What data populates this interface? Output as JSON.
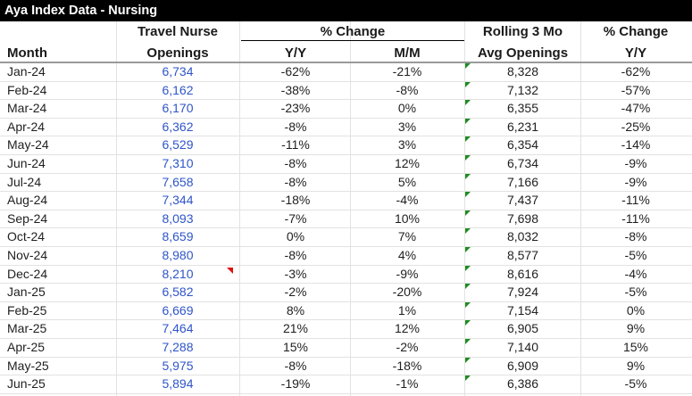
{
  "title": "Aya Index Data - Nursing",
  "headers": {
    "month": "Month",
    "travel_nurse_line1": "Travel Nurse",
    "travel_nurse_line2": "Openings",
    "pct_change": "% Change",
    "yy": "Y/Y",
    "mm": "M/M",
    "rolling_line1": "Rolling 3 Mo",
    "rolling_line2": "Avg Openings",
    "pct_change2_line1": "% Change",
    "pct_change2_line2": "Y/Y"
  },
  "rows": [
    {
      "month": "Jan-24",
      "openings": "6,734",
      "yy": "-62%",
      "mm": "-21%",
      "rolling": "8,328",
      "rolling_yy": "-62%"
    },
    {
      "month": "Feb-24",
      "openings": "6,162",
      "yy": "-38%",
      "mm": "-8%",
      "rolling": "7,132",
      "rolling_yy": "-57%"
    },
    {
      "month": "Mar-24",
      "openings": "6,170",
      "yy": "-23%",
      "mm": "0%",
      "rolling": "6,355",
      "rolling_yy": "-47%"
    },
    {
      "month": "Apr-24",
      "openings": "6,362",
      "yy": "-8%",
      "mm": "3%",
      "rolling": "6,231",
      "rolling_yy": "-25%"
    },
    {
      "month": "May-24",
      "openings": "6,529",
      "yy": "-11%",
      "mm": "3%",
      "rolling": "6,354",
      "rolling_yy": "-14%"
    },
    {
      "month": "Jun-24",
      "openings": "7,310",
      "yy": "-8%",
      "mm": "12%",
      "rolling": "6,734",
      "rolling_yy": "-9%"
    },
    {
      "month": "Jul-24",
      "openings": "7,658",
      "yy": "-8%",
      "mm": "5%",
      "rolling": "7,166",
      "rolling_yy": "-9%"
    },
    {
      "month": "Aug-24",
      "openings": "7,344",
      "yy": "-18%",
      "mm": "-4%",
      "rolling": "7,437",
      "rolling_yy": "-11%"
    },
    {
      "month": "Sep-24",
      "openings": "8,093",
      "yy": "-7%",
      "mm": "10%",
      "rolling": "7,698",
      "rolling_yy": "-11%"
    },
    {
      "month": "Oct-24",
      "openings": "8,659",
      "yy": "0%",
      "mm": "7%",
      "rolling": "8,032",
      "rolling_yy": "-8%"
    },
    {
      "month": "Nov-24",
      "openings": "8,980",
      "yy": "-8%",
      "mm": "4%",
      "rolling": "8,577",
      "rolling_yy": "-5%"
    },
    {
      "month": "Dec-24",
      "openings": "8,210",
      "yy": "-3%",
      "mm": "-9%",
      "rolling": "8,616",
      "rolling_yy": "-4%"
    },
    {
      "month": "Jan-25",
      "openings": "6,582",
      "yy": "-2%",
      "mm": "-20%",
      "rolling": "7,924",
      "rolling_yy": "-5%"
    },
    {
      "month": "Feb-25",
      "openings": "6,669",
      "yy": "8%",
      "mm": "1%",
      "rolling": "7,154",
      "rolling_yy": "0%"
    },
    {
      "month": "Mar-25",
      "openings": "7,464",
      "yy": "21%",
      "mm": "12%",
      "rolling": "6,905",
      "rolling_yy": "9%"
    },
    {
      "month": "Apr-25",
      "openings": "7,288",
      "yy": "15%",
      "mm": "-2%",
      "rolling": "7,140",
      "rolling_yy": "15%"
    },
    {
      "month": "May-25",
      "openings": "5,975",
      "yy": "-8%",
      "mm": "-18%",
      "rolling": "6,909",
      "rolling_yy": "9%"
    },
    {
      "month": "Jun-25",
      "openings": "5,894",
      "yy": "-19%",
      "mm": "-1%",
      "rolling": "6,386",
      "rolling_yy": "-5%"
    }
  ],
  "colors": {
    "openings_text": "#2f55c9",
    "comment_indicator": "#e01010",
    "error_indicator": "#1e8c1e"
  }
}
